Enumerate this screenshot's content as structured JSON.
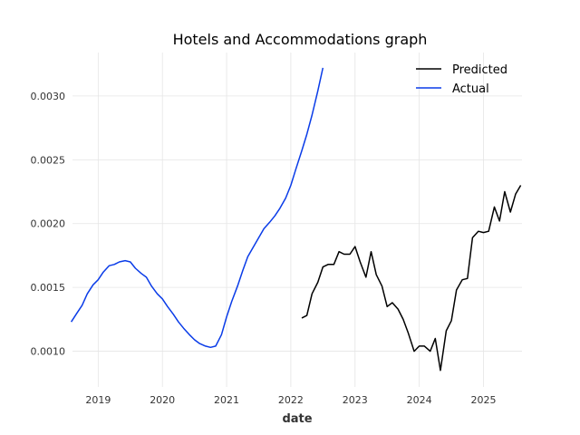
{
  "chart_data": {
    "type": "line",
    "title": "Hotels and Accommodations graph",
    "xlabel": "date",
    "ylabel": "",
    "xlim": [
      2018.6,
      2025.6
    ],
    "ylim": [
      0.00072,
      0.00334
    ],
    "x_ticks": [
      {
        "value": 2019,
        "label": "2019"
      },
      {
        "value": 2020,
        "label": "2020"
      },
      {
        "value": 2021,
        "label": "2021"
      },
      {
        "value": 2022,
        "label": "2022"
      },
      {
        "value": 2023,
        "label": "2023"
      },
      {
        "value": 2024,
        "label": "2024"
      },
      {
        "value": 2025,
        "label": "2025"
      }
    ],
    "y_ticks": [
      {
        "value": 0.001,
        "label": "0.0010"
      },
      {
        "value": 0.0015,
        "label": "0.0015"
      },
      {
        "value": 0.002,
        "label": "0.0020"
      },
      {
        "value": 0.0025,
        "label": "0.0025"
      },
      {
        "value": 0.003,
        "label": "0.0030"
      }
    ],
    "grid": true,
    "legend_position": "top-right",
    "series": [
      {
        "name": "Predicted",
        "color": "#000000",
        "x": [
          2022.17,
          2022.25,
          2022.33,
          2022.42,
          2022.5,
          2022.58,
          2022.67,
          2022.75,
          2022.83,
          2022.92,
          2023.0,
          2023.08,
          2023.17,
          2023.25,
          2023.33,
          2023.42,
          2023.5,
          2023.58,
          2023.67,
          2023.75,
          2023.83,
          2023.92,
          2024.0,
          2024.08,
          2024.17,
          2024.25,
          2024.33,
          2024.42,
          2024.5,
          2024.58,
          2024.67,
          2024.75,
          2024.83,
          2024.92,
          2025.0,
          2025.08,
          2025.17,
          2025.25,
          2025.33,
          2025.42,
          2025.5,
          2025.58
        ],
        "y": [
          0.00126,
          0.00128,
          0.00145,
          0.00154,
          0.00166,
          0.00168,
          0.00168,
          0.00178,
          0.00176,
          0.00176,
          0.00182,
          0.0017,
          0.00158,
          0.00178,
          0.0016,
          0.00151,
          0.00135,
          0.00138,
          0.00133,
          0.00125,
          0.00114,
          0.001,
          0.00104,
          0.00104,
          0.001,
          0.0011,
          0.00085,
          0.00116,
          0.00124,
          0.00148,
          0.00156,
          0.00157,
          0.00189,
          0.00194,
          0.00193,
          0.00194,
          0.00213,
          0.00202,
          0.00225,
          0.00209,
          0.00223,
          0.0023
        ]
      },
      {
        "name": "Actual",
        "color": "#0a3ce8",
        "x": [
          2018.58,
          2018.67,
          2018.75,
          2018.83,
          2018.92,
          2019.0,
          2019.08,
          2019.17,
          2019.25,
          2019.33,
          2019.42,
          2019.5,
          2019.58,
          2019.67,
          2019.75,
          2019.83,
          2019.92,
          2020.0,
          2020.08,
          2020.17,
          2020.25,
          2020.33,
          2020.42,
          2020.5,
          2020.58,
          2020.67,
          2020.75,
          2020.83,
          2020.92,
          2021.0,
          2021.08,
          2021.17,
          2021.25,
          2021.33,
          2021.42,
          2021.5,
          2021.58,
          2021.67,
          2021.75,
          2021.83,
          2021.92,
          2022.0,
          2022.08,
          2022.17,
          2022.25,
          2022.33,
          2022.42,
          2022.5
        ],
        "y": [
          0.00123,
          0.0013,
          0.00136,
          0.00145,
          0.00152,
          0.00156,
          0.00162,
          0.00167,
          0.00168,
          0.0017,
          0.00171,
          0.0017,
          0.00165,
          0.00161,
          0.00158,
          0.00151,
          0.00145,
          0.00141,
          0.00135,
          0.00129,
          0.00123,
          0.00118,
          0.00113,
          0.00109,
          0.00106,
          0.00104,
          0.00103,
          0.00104,
          0.00113,
          0.00127,
          0.00139,
          0.00151,
          0.00163,
          0.00174,
          0.00182,
          0.00189,
          0.00196,
          0.00201,
          0.00206,
          0.00212,
          0.0022,
          0.0023,
          0.00243,
          0.00257,
          0.0027,
          0.00285,
          0.00304,
          0.00322
        ]
      }
    ]
  }
}
